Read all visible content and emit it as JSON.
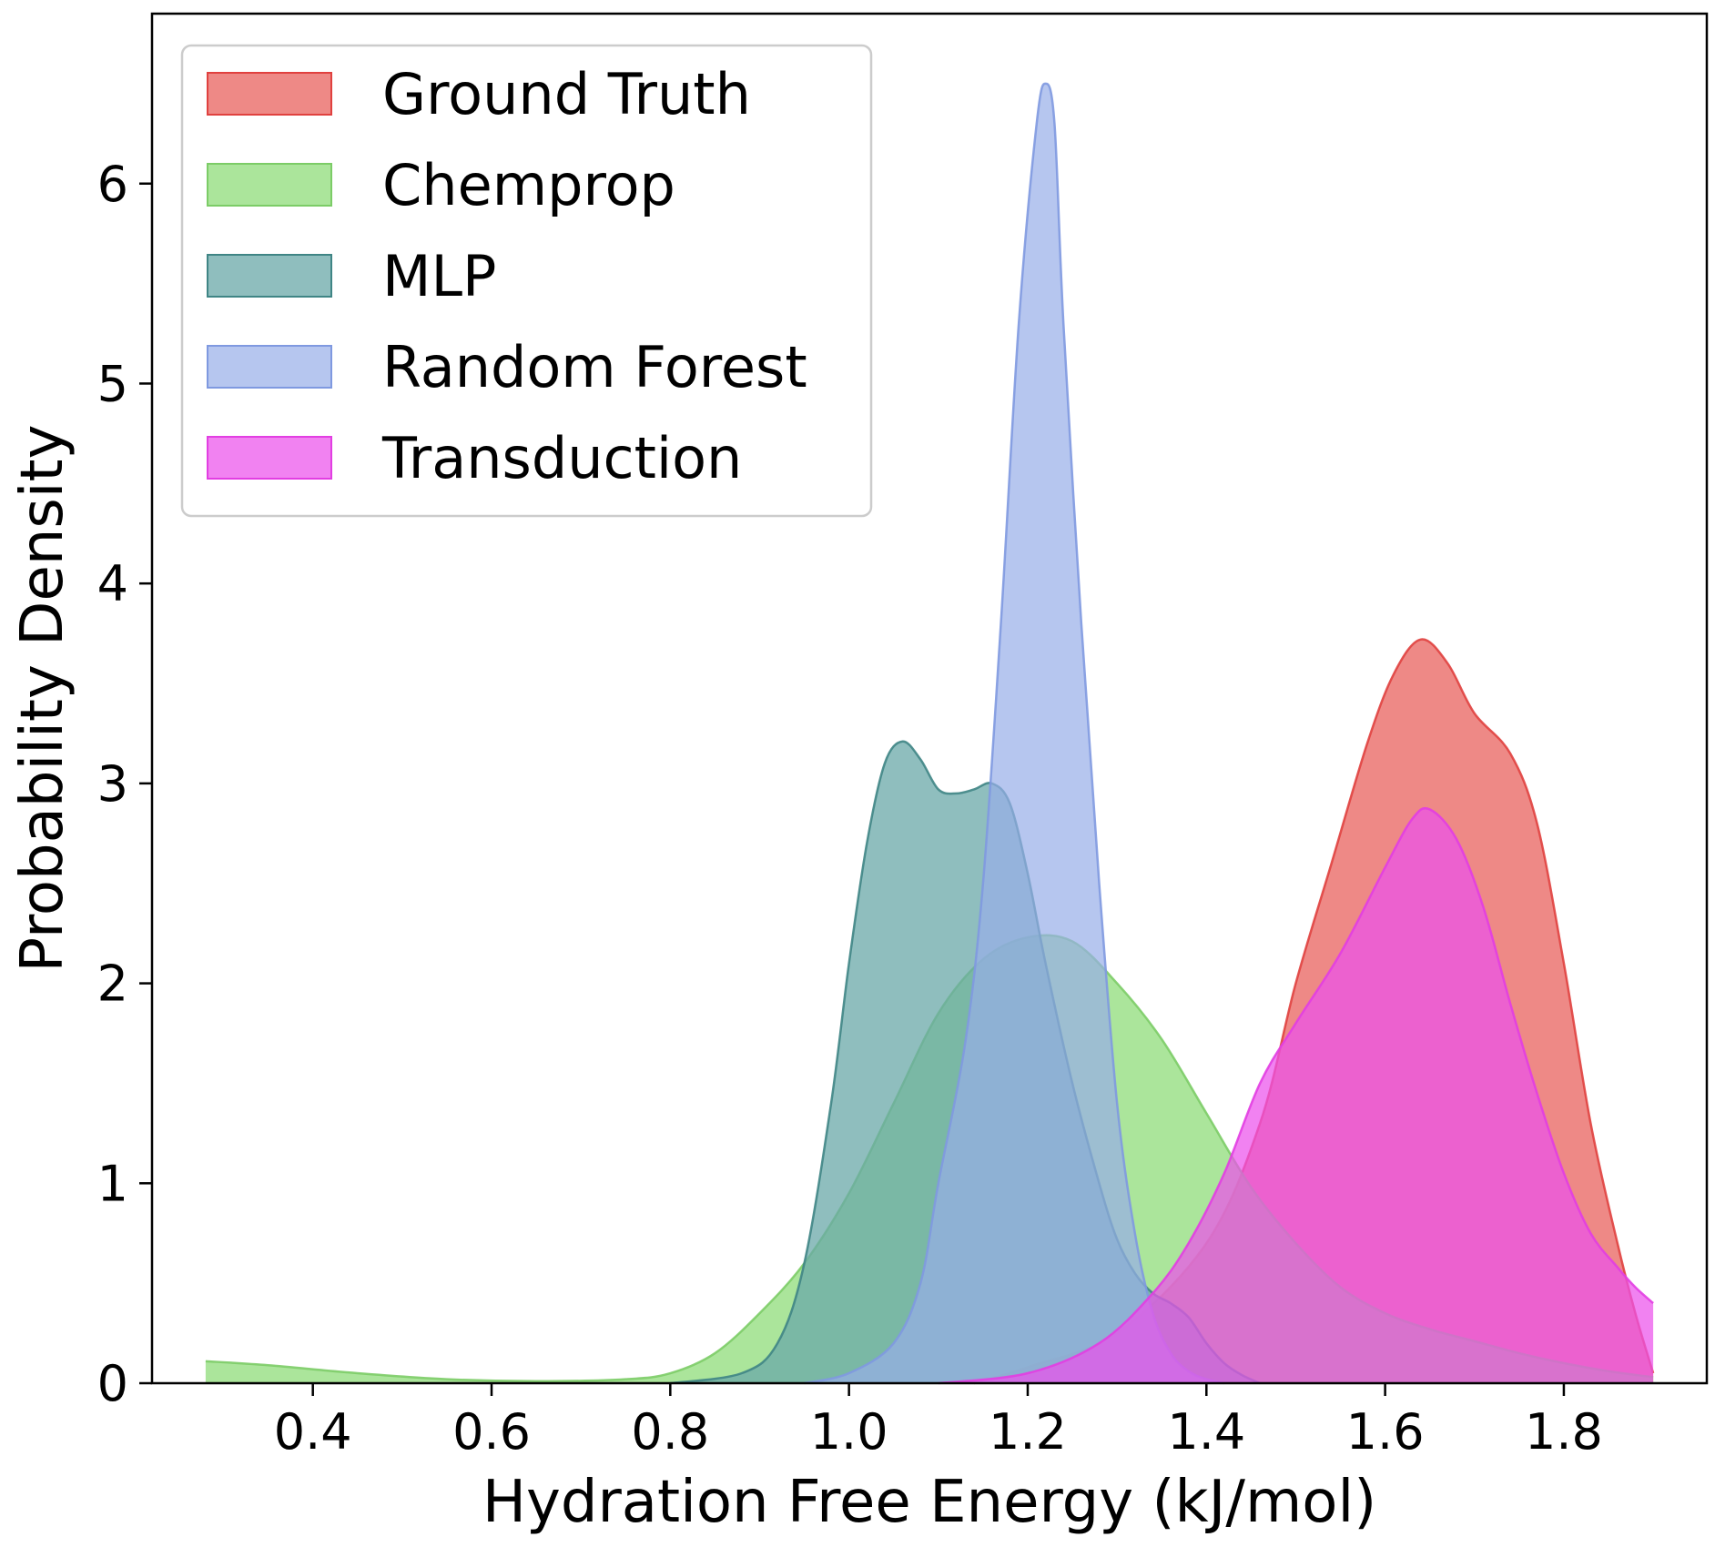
{
  "chart_data": {
    "type": "area",
    "title": "",
    "xlabel": "Hydration Free Energy (kJ/mol)",
    "ylabel": "Probability Density",
    "xlim": [
      0.22,
      1.96
    ],
    "ylim": [
      0,
      6.85
    ],
    "xticks": [
      0.4,
      0.6,
      0.8,
      1.0,
      1.2,
      1.4,
      1.6,
      1.8
    ],
    "xtick_labels": [
      "0.4",
      "0.6",
      "0.8",
      "1.0",
      "1.2",
      "1.4",
      "1.6",
      "1.8"
    ],
    "yticks": [
      0,
      1,
      2,
      3,
      4,
      5,
      6
    ],
    "ytick_labels": [
      "0",
      "1",
      "2",
      "3",
      "4",
      "5",
      "6"
    ],
    "grid": false,
    "legend_position": "top-left",
    "series": [
      {
        "name": "Ground Truth",
        "fill": "#e8615e",
        "stroke": "#e0413f",
        "opacity": 0.75,
        "points": [
          [
            1.14,
            0
          ],
          [
            1.2,
            0.08
          ],
          [
            1.3,
            0.25
          ],
          [
            1.4,
            0.7
          ],
          [
            1.46,
            1.3
          ],
          [
            1.5,
            2.0
          ],
          [
            1.54,
            2.6
          ],
          [
            1.58,
            3.2
          ],
          [
            1.61,
            3.55
          ],
          [
            1.64,
            3.72
          ],
          [
            1.67,
            3.6
          ],
          [
            1.7,
            3.35
          ],
          [
            1.74,
            3.15
          ],
          [
            1.77,
            2.8
          ],
          [
            1.8,
            2.1
          ],
          [
            1.83,
            1.3
          ],
          [
            1.86,
            0.7
          ],
          [
            1.88,
            0.35
          ],
          [
            1.9,
            0.05
          ]
        ]
      },
      {
        "name": "Chemprop",
        "fill": "#8fdc7a",
        "stroke": "#7ccc67",
        "opacity": 0.75,
        "points": [
          [
            0.28,
            0.11
          ],
          [
            0.35,
            0.09
          ],
          [
            0.45,
            0.05
          ],
          [
            0.55,
            0.02
          ],
          [
            0.65,
            0.01
          ],
          [
            0.75,
            0.02
          ],
          [
            0.8,
            0.05
          ],
          [
            0.85,
            0.15
          ],
          [
            0.9,
            0.35
          ],
          [
            0.95,
            0.6
          ],
          [
            1.0,
            0.95
          ],
          [
            1.05,
            1.4
          ],
          [
            1.1,
            1.85
          ],
          [
            1.15,
            2.12
          ],
          [
            1.2,
            2.23
          ],
          [
            1.25,
            2.21
          ],
          [
            1.3,
            2.0
          ],
          [
            1.35,
            1.72
          ],
          [
            1.4,
            1.35
          ],
          [
            1.45,
            0.98
          ],
          [
            1.5,
            0.7
          ],
          [
            1.55,
            0.48
          ],
          [
            1.6,
            0.35
          ],
          [
            1.65,
            0.27
          ],
          [
            1.7,
            0.21
          ],
          [
            1.75,
            0.15
          ],
          [
            1.8,
            0.1
          ],
          [
            1.85,
            0.06
          ],
          [
            1.9,
            0.03
          ]
        ]
      },
      {
        "name": "MLP",
        "fill": "#6aa8a8",
        "stroke": "#3f8585",
        "opacity": 0.75,
        "points": [
          [
            0.8,
            0
          ],
          [
            0.88,
            0.05
          ],
          [
            0.92,
            0.2
          ],
          [
            0.95,
            0.6
          ],
          [
            0.98,
            1.4
          ],
          [
            1.0,
            2.1
          ],
          [
            1.02,
            2.7
          ],
          [
            1.04,
            3.1
          ],
          [
            1.06,
            3.21
          ],
          [
            1.08,
            3.12
          ],
          [
            1.1,
            2.97
          ],
          [
            1.12,
            2.95
          ],
          [
            1.14,
            2.97
          ],
          [
            1.16,
            3.0
          ],
          [
            1.18,
            2.9
          ],
          [
            1.2,
            2.55
          ],
          [
            1.22,
            2.1
          ],
          [
            1.25,
            1.5
          ],
          [
            1.28,
            1.0
          ],
          [
            1.3,
            0.72
          ],
          [
            1.32,
            0.55
          ],
          [
            1.34,
            0.45
          ],
          [
            1.36,
            0.4
          ],
          [
            1.38,
            0.33
          ],
          [
            1.4,
            0.2
          ],
          [
            1.42,
            0.1
          ],
          [
            1.44,
            0.04
          ],
          [
            1.46,
            0
          ]
        ]
      },
      {
        "name": "Random Forest",
        "fill": "#97aee8",
        "stroke": "#7f99e0",
        "opacity": 0.7,
        "points": [
          [
            0.95,
            0
          ],
          [
            1.0,
            0.05
          ],
          [
            1.05,
            0.2
          ],
          [
            1.08,
            0.5
          ],
          [
            1.1,
            1.0
          ],
          [
            1.13,
            1.7
          ],
          [
            1.15,
            2.5
          ],
          [
            1.17,
            3.8
          ],
          [
            1.19,
            5.3
          ],
          [
            1.21,
            6.3
          ],
          [
            1.22,
            6.5
          ],
          [
            1.23,
            6.3
          ],
          [
            1.24,
            5.3
          ],
          [
            1.26,
            3.8
          ],
          [
            1.28,
            2.5
          ],
          [
            1.3,
            1.4
          ],
          [
            1.32,
            0.75
          ],
          [
            1.34,
            0.35
          ],
          [
            1.36,
            0.15
          ],
          [
            1.38,
            0.06
          ],
          [
            1.4,
            0.02
          ],
          [
            1.42,
            0
          ]
        ]
      },
      {
        "name": "Transduction",
        "fill": "#ec52ec",
        "stroke": "#e23ee2",
        "opacity": 0.72,
        "points": [
          [
            1.1,
            0
          ],
          [
            1.2,
            0.05
          ],
          [
            1.28,
            0.2
          ],
          [
            1.34,
            0.45
          ],
          [
            1.38,
            0.7
          ],
          [
            1.42,
            1.05
          ],
          [
            1.46,
            1.5
          ],
          [
            1.5,
            1.8
          ],
          [
            1.55,
            2.15
          ],
          [
            1.6,
            2.58
          ],
          [
            1.63,
            2.82
          ],
          [
            1.65,
            2.87
          ],
          [
            1.68,
            2.72
          ],
          [
            1.71,
            2.38
          ],
          [
            1.74,
            1.9
          ],
          [
            1.77,
            1.45
          ],
          [
            1.8,
            1.05
          ],
          [
            1.83,
            0.75
          ],
          [
            1.86,
            0.58
          ],
          [
            1.88,
            0.48
          ],
          [
            1.9,
            0.4
          ]
        ]
      }
    ]
  }
}
